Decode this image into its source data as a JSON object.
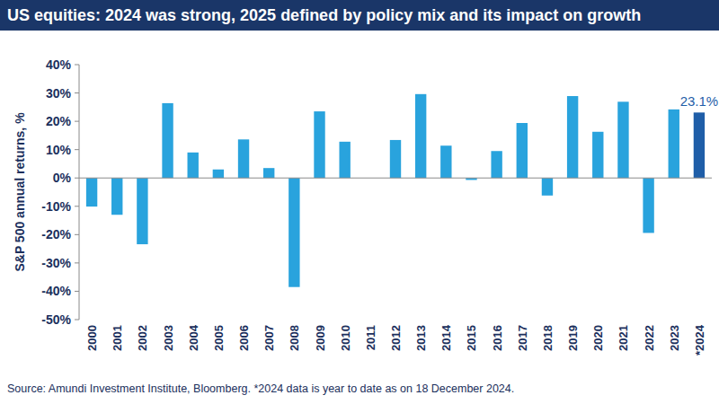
{
  "chart_data": {
    "type": "bar",
    "title": "US equities: 2024 was strong, 2025 defined by policy mix and its impact on growth",
    "y_label": "S&P 500 annual returns, %",
    "source": "Source: Amundi Investment Institute, Bloomberg. *2024 data is year to date as on 18 December 2024.",
    "categories": [
      "2000",
      "2001",
      "2002",
      "2003",
      "2004",
      "2005",
      "2006",
      "2007",
      "2008",
      "2009",
      "2010",
      "2011",
      "2012",
      "2013",
      "2014",
      "2015",
      "2016",
      "2017",
      "2018",
      "2019",
      "2020",
      "2021",
      "2022",
      "2023",
      "*2024"
    ],
    "values": [
      -10.1,
      -13.0,
      -23.4,
      26.4,
      9.0,
      3.0,
      13.6,
      3.5,
      -38.5,
      23.5,
      12.8,
      0.0,
      13.4,
      29.6,
      11.4,
      -0.7,
      9.5,
      19.4,
      -6.2,
      28.9,
      16.3,
      26.9,
      -19.4,
      24.2,
      23.1
    ],
    "value_labels": [
      null,
      null,
      null,
      null,
      null,
      null,
      null,
      null,
      null,
      null,
      null,
      null,
      null,
      null,
      null,
      null,
      null,
      null,
      null,
      null,
      null,
      null,
      null,
      null,
      "23.1%"
    ],
    "colors": [
      "#29a3dd",
      "#29a3dd",
      "#29a3dd",
      "#29a3dd",
      "#29a3dd",
      "#29a3dd",
      "#29a3dd",
      "#29a3dd",
      "#29a3dd",
      "#29a3dd",
      "#29a3dd",
      "#29a3dd",
      "#29a3dd",
      "#29a3dd",
      "#29a3dd",
      "#29a3dd",
      "#29a3dd",
      "#29a3dd",
      "#29a3dd",
      "#29a3dd",
      "#29a3dd",
      "#29a3dd",
      "#29a3dd",
      "#29a3dd",
      "#1f5ea8"
    ],
    "ylim": [
      -50,
      40
    ],
    "yticks": [
      {
        "value": -50,
        "label": "-50%"
      },
      {
        "value": -40,
        "label": "-40%"
      },
      {
        "value": -30,
        "label": "-30%"
      },
      {
        "value": -20,
        "label": "-20%"
      },
      {
        "value": -10,
        "label": "-10%"
      },
      {
        "value": 0,
        "label": "0%"
      },
      {
        "value": 10,
        "label": "10%"
      },
      {
        "value": 20,
        "label": "20%"
      },
      {
        "value": 30,
        "label": "30%"
      },
      {
        "value": 40,
        "label": "40%"
      }
    ],
    "grid": false
  }
}
